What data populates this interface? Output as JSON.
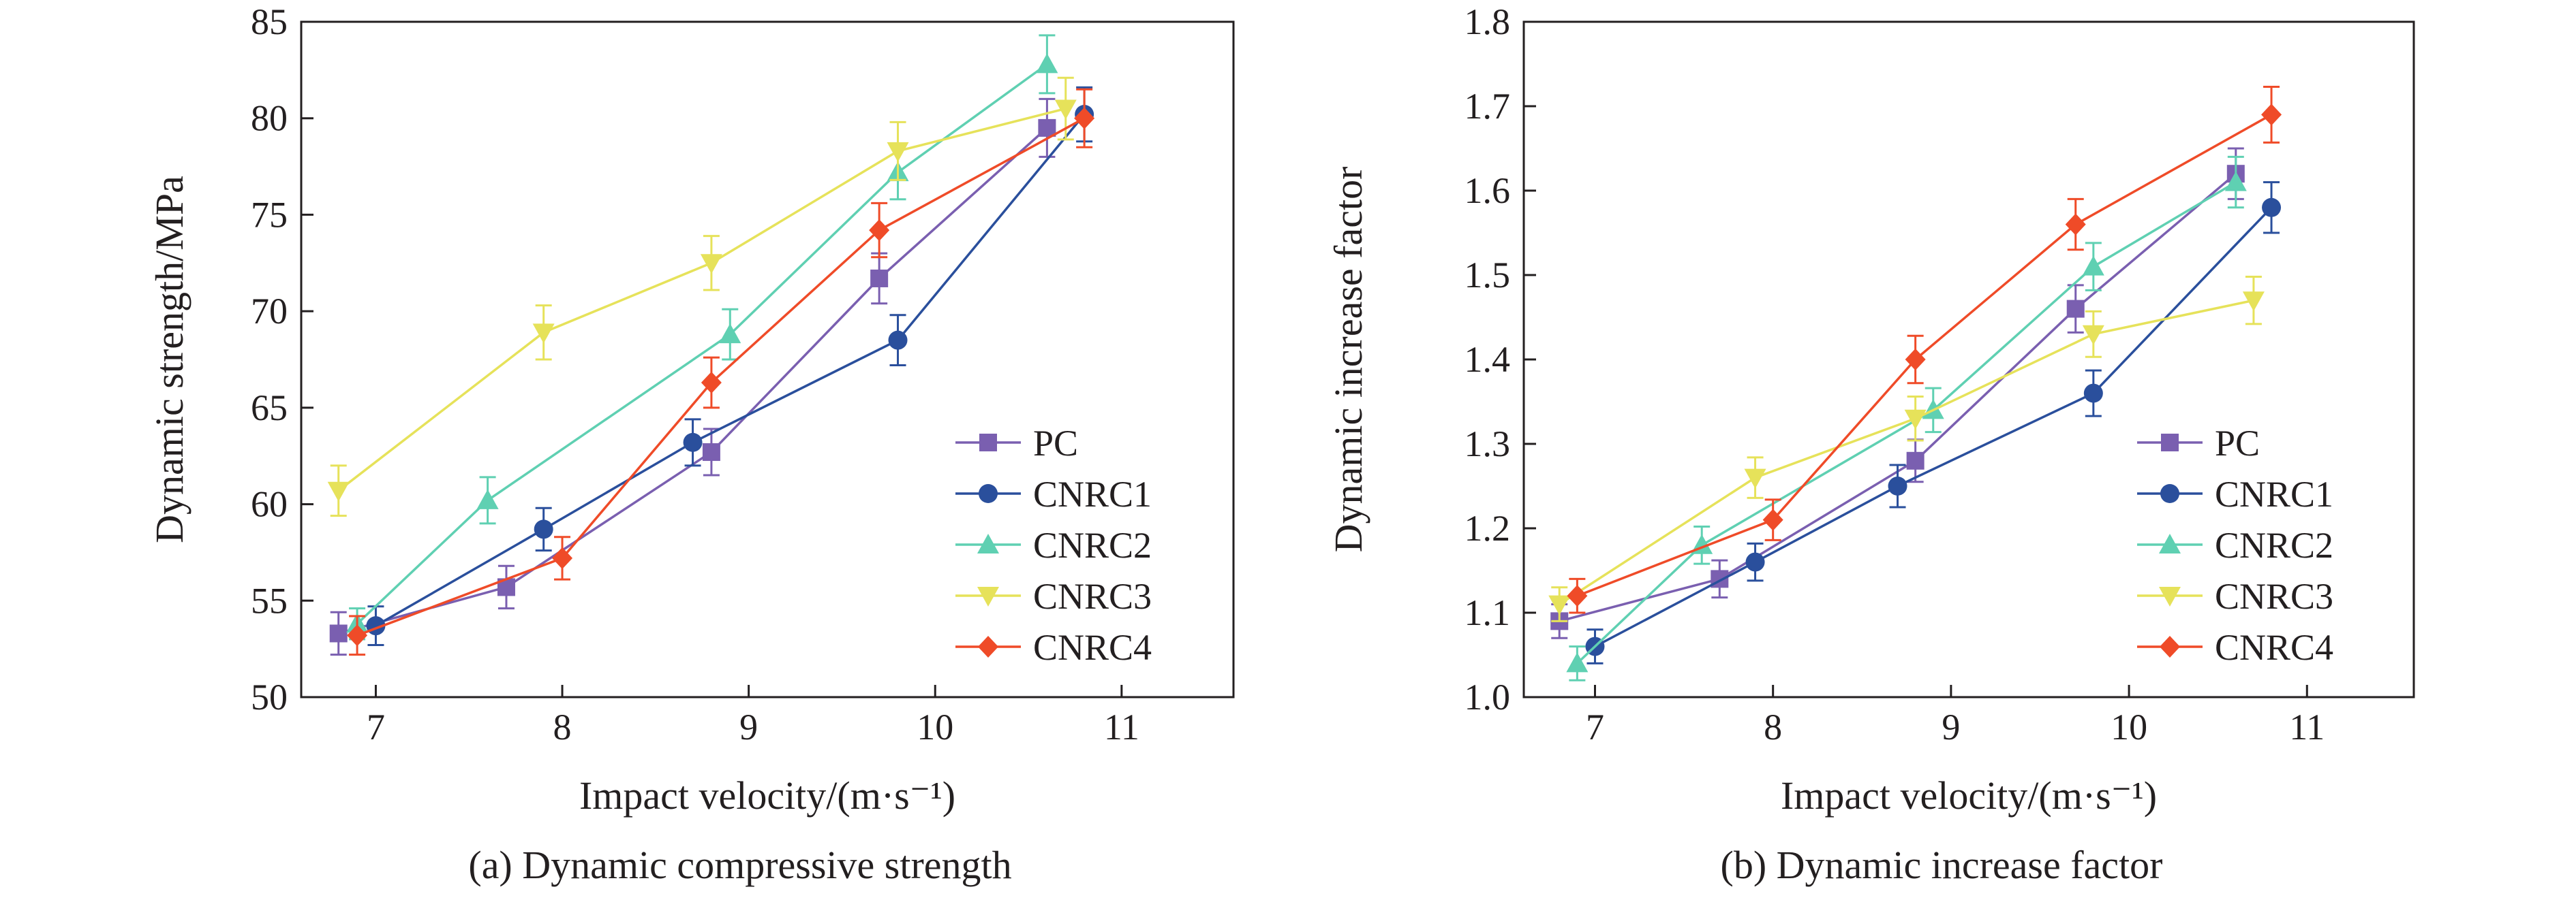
{
  "chart_data": [
    {
      "id": "a",
      "type": "line",
      "caption": "(a) Dynamic compressive strength",
      "xlabel": "Impact velocity/(m·s⁻¹)",
      "ylabel": "Dynamic strength/MPa",
      "xlim": [
        6.6,
        11.6
      ],
      "ylim": [
        50,
        85
      ],
      "xticks": [
        "7",
        "8",
        "9",
        "10",
        "11"
      ],
      "xtick_values": [
        7,
        8,
        9,
        10,
        11
      ],
      "yticks": [
        "50",
        "55",
        "60",
        "65",
        "70",
        "75",
        "80",
        "85"
      ],
      "ytick_values": [
        50,
        55,
        60,
        65,
        70,
        75,
        80,
        85
      ],
      "grid": false,
      "legend_position": "bottom-right",
      "series": [
        {
          "name": "PC",
          "marker": "square",
          "color": "#7a5fb0",
          "x": [
            6.8,
            7.7,
            8.8,
            9.7,
            10.6
          ],
          "y": [
            53.3,
            55.7,
            62.7,
            71.7,
            79.5
          ],
          "err": [
            1.1,
            1.1,
            1.2,
            1.3,
            1.5
          ]
        },
        {
          "name": "CNRC1",
          "marker": "circle",
          "color": "#2a4f9c",
          "x": [
            7.0,
            7.9,
            8.7,
            9.8,
            10.8
          ],
          "y": [
            53.7,
            58.7,
            63.2,
            68.5,
            80.2
          ],
          "err": [
            1.0,
            1.1,
            1.2,
            1.3,
            1.4
          ]
        },
        {
          "name": "CNRC2",
          "marker": "triangle-up",
          "color": "#5fd0b2",
          "x": [
            6.9,
            7.6,
            8.9,
            9.8,
            10.6
          ],
          "y": [
            53.8,
            60.2,
            68.8,
            77.2,
            82.8
          ],
          "err": [
            0.8,
            1.2,
            1.3,
            1.4,
            1.5
          ]
        },
        {
          "name": "CNRC3",
          "marker": "triangle-down",
          "color": "#e6e25a",
          "x": [
            6.8,
            7.9,
            8.8,
            9.8,
            10.7
          ],
          "y": [
            60.7,
            68.9,
            72.5,
            78.3,
            80.5
          ],
          "err": [
            1.3,
            1.4,
            1.4,
            1.5,
            1.6
          ]
        },
        {
          "name": "CNRC4",
          "marker": "diamond",
          "color": "#ef4b28",
          "x": [
            6.9,
            8.0,
            8.8,
            9.7,
            10.8
          ],
          "y": [
            53.2,
            57.2,
            66.3,
            74.2,
            80.0
          ],
          "err": [
            1.0,
            1.1,
            1.3,
            1.4,
            1.5
          ]
        }
      ]
    },
    {
      "id": "b",
      "type": "line",
      "caption": "(b) Dynamic increase factor",
      "xlabel": "Impact velocity/(m·s⁻¹)",
      "ylabel": "Dynamic increase factor",
      "xlim": [
        6.6,
        11.6
      ],
      "ylim": [
        1.0,
        1.8
      ],
      "xticks": [
        "7",
        "8",
        "9",
        "10",
        "11"
      ],
      "xtick_values": [
        7,
        8,
        9,
        10,
        11
      ],
      "yticks": [
        "1.0",
        "1.1",
        "1.2",
        "1.3",
        "1.4",
        "1.5",
        "1.6",
        "1.7",
        "1.8"
      ],
      "ytick_values": [
        1.0,
        1.1,
        1.2,
        1.3,
        1.4,
        1.5,
        1.6,
        1.7,
        1.8
      ],
      "grid": false,
      "legend_position": "bottom-right",
      "series": [
        {
          "name": "PC",
          "marker": "square",
          "color": "#7a5fb0",
          "x": [
            6.8,
            7.7,
            8.8,
            9.7,
            10.6
          ],
          "y": [
            1.09,
            1.14,
            1.28,
            1.46,
            1.62
          ],
          "err": [
            0.02,
            0.022,
            0.025,
            0.028,
            0.03
          ]
        },
        {
          "name": "CNRC1",
          "marker": "circle",
          "color": "#2a4f9c",
          "x": [
            7.0,
            7.9,
            8.7,
            9.8,
            10.8
          ],
          "y": [
            1.06,
            1.16,
            1.25,
            1.36,
            1.58
          ],
          "err": [
            0.02,
            0.022,
            0.025,
            0.027,
            0.03
          ]
        },
        {
          "name": "CNRC2",
          "marker": "triangle-up",
          "color": "#5fd0b2",
          "x": [
            6.9,
            7.6,
            8.9,
            9.8,
            10.6
          ],
          "y": [
            1.04,
            1.18,
            1.34,
            1.51,
            1.61
          ],
          "err": [
            0.02,
            0.022,
            0.026,
            0.028,
            0.03
          ]
        },
        {
          "name": "CNRC3",
          "marker": "triangle-down",
          "color": "#e6e25a",
          "x": [
            6.8,
            7.9,
            8.8,
            9.8,
            10.7
          ],
          "y": [
            1.11,
            1.26,
            1.33,
            1.43,
            1.47
          ],
          "err": [
            0.02,
            0.024,
            0.026,
            0.027,
            0.028
          ]
        },
        {
          "name": "CNRC4",
          "marker": "diamond",
          "color": "#ef4b28",
          "x": [
            6.9,
            8.0,
            8.8,
            9.7,
            10.8
          ],
          "y": [
            1.12,
            1.21,
            1.4,
            1.56,
            1.69
          ],
          "err": [
            0.02,
            0.024,
            0.028,
            0.03,
            0.033
          ]
        }
      ]
    }
  ]
}
